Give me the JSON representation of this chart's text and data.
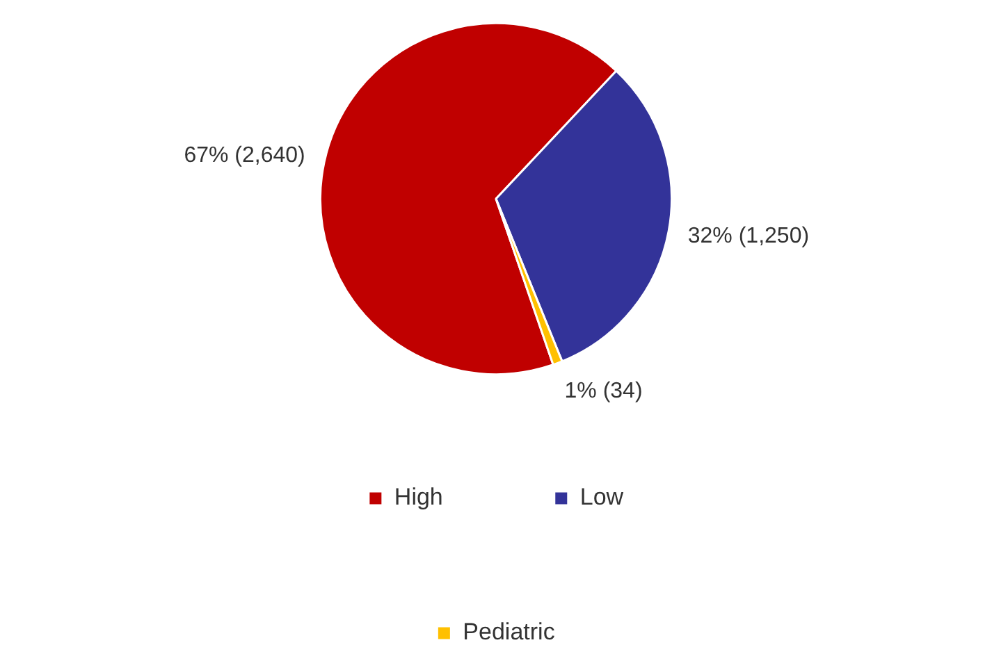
{
  "chart_data": {
    "type": "pie",
    "categories": [
      "High",
      "Low",
      "Pediatric"
    ],
    "values": [
      2640,
      1250,
      34
    ],
    "colors": [
      "#c00000",
      "#333399",
      "#ffc000"
    ],
    "value_labels": [
      "67% (2,640)",
      "32% (1,250)",
      "1% (34)"
    ],
    "legend": "bottom"
  }
}
